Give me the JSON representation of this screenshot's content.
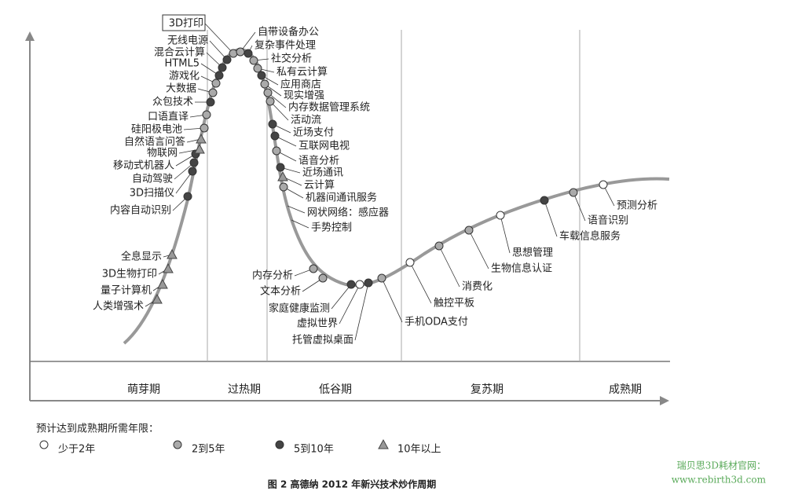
{
  "title": "图 2  高德纳 2012 年新兴技术炒作周期",
  "phases": [
    "萌芽期",
    "过热期",
    "低谷期",
    "复苏期",
    "成熟期"
  ],
  "legend": {
    "title": "预计达到成熟期所需年限：",
    "items": [
      {
        "label": "少于2年",
        "marker": "white"
      },
      {
        "label": "2到5年",
        "marker": "gray"
      },
      {
        "label": "5到10年",
        "marker": "dark"
      },
      {
        "label": "10年以上",
        "marker": "triangle"
      }
    ]
  },
  "nodes": [
    {
      "label": "人类增强术",
      "marker": "triangle"
    },
    {
      "label": "量子计算机",
      "marker": "triangle"
    },
    {
      "label": "3D生物打印",
      "marker": "triangle"
    },
    {
      "label": "全息显示",
      "marker": "triangle"
    },
    {
      "label": "内容自动识别",
      "marker": "dark"
    },
    {
      "label": "3D扫描仪",
      "marker": "dark"
    },
    {
      "label": "自动驾驶",
      "marker": "dark"
    },
    {
      "label": "移动式机器人",
      "marker": "dark"
    },
    {
      "label": "物联网",
      "marker": "triangle"
    },
    {
      "label": "自然语言问答",
      "marker": "triangle"
    },
    {
      "label": "硅阳极电池",
      "marker": "gray"
    },
    {
      "label": "口语直译",
      "marker": "gray"
    },
    {
      "label": "众包技术",
      "marker": "dark"
    },
    {
      "label": "大数据",
      "marker": "gray"
    },
    {
      "label": "游戏化",
      "marker": "gray"
    },
    {
      "label": "HTML5",
      "marker": "dark"
    },
    {
      "label": "混合云计算",
      "marker": "dark"
    },
    {
      "label": "无线电源",
      "marker": "dark"
    },
    {
      "label": "3D打印",
      "marker": "gray"
    },
    {
      "label": "自带设备办公",
      "marker": "gray"
    },
    {
      "label": "复杂事件处理",
      "marker": "dark"
    },
    {
      "label": "社交分析",
      "marker": "gray"
    },
    {
      "label": "私有云计算",
      "marker": "gray"
    },
    {
      "label": "应用商店",
      "marker": "dark"
    },
    {
      "label": "现实增强",
      "marker": "gray"
    },
    {
      "label": "内存数据管理系统",
      "marker": "gray"
    },
    {
      "label": "活动流",
      "marker": "gray"
    },
    {
      "label": "近场支付",
      "marker": "dark"
    },
    {
      "label": "互联网电视",
      "marker": "dark"
    },
    {
      "label": "语音分析",
      "marker": "gray"
    },
    {
      "label": "近场通讯",
      "marker": "dark"
    },
    {
      "label": "云计算",
      "marker": "triangle"
    },
    {
      "label": "机器间通讯服务",
      "marker": "gray"
    },
    {
      "label": "网状网络：感应器"
    },
    {
      "label": "手势控制"
    },
    {
      "label": "内存分析",
      "marker": "gray"
    },
    {
      "label": "文本分析",
      "marker": "gray"
    },
    {
      "label": "家庭健康监测",
      "marker": "dark"
    },
    {
      "label": "虚拟世界",
      "marker": "white"
    },
    {
      "label": "托管虚拟桌面",
      "marker": "dark"
    },
    {
      "label": "手机ODA支付",
      "marker": "gray"
    },
    {
      "label": "触控平板",
      "marker": "white"
    },
    {
      "label": "消费化",
      "marker": "gray"
    },
    {
      "label": "生物信息认证",
      "marker": "gray"
    },
    {
      "label": "思想管理",
      "marker": "white"
    },
    {
      "label": "车载信息服务",
      "marker": "dark"
    },
    {
      "label": "语音识别",
      "marker": "gray"
    },
    {
      "label": "预测分析",
      "marker": "white"
    }
  ],
  "watermark": [
    "瑞贝思3D耗材官网：",
    "www.rebirth3d.com"
  ]
}
